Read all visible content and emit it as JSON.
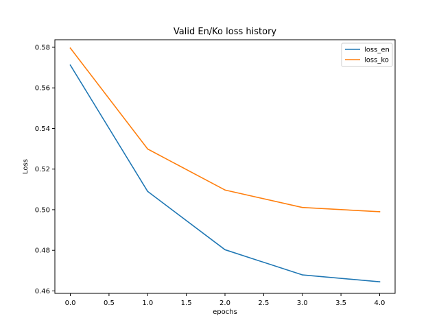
{
  "chart_data": {
    "type": "line",
    "title": "Valid En/Ko loss history",
    "xlabel": "epochs",
    "ylabel": "Loss",
    "x": [
      0,
      1,
      2,
      3,
      4
    ],
    "series": [
      {
        "name": "loss_en",
        "color": "#1f77b4",
        "values": [
          0.5712,
          0.509,
          0.4803,
          0.4679,
          0.4645
        ]
      },
      {
        "name": "loss_ko",
        "color": "#ff7f0e",
        "values": [
          0.5796,
          0.5299,
          0.5097,
          0.5011,
          0.499
        ]
      }
    ],
    "xlim": [
      -0.2,
      4.2
    ],
    "ylim": [
      0.4588,
      0.5837
    ],
    "xticks": [
      0.0,
      0.5,
      1.0,
      1.5,
      2.0,
      2.5,
      3.0,
      3.5,
      4.0
    ],
    "xtick_labels": [
      "0.0",
      "0.5",
      "1.0",
      "1.5",
      "2.0",
      "2.5",
      "3.0",
      "3.5",
      "4.0"
    ],
    "yticks": [
      0.46,
      0.48,
      0.5,
      0.52,
      0.54,
      0.56,
      0.58
    ],
    "ytick_labels": [
      "0.46",
      "0.48",
      "0.50",
      "0.52",
      "0.54",
      "0.56",
      "0.58"
    ],
    "grid": false,
    "legend_position": "top-right"
  }
}
